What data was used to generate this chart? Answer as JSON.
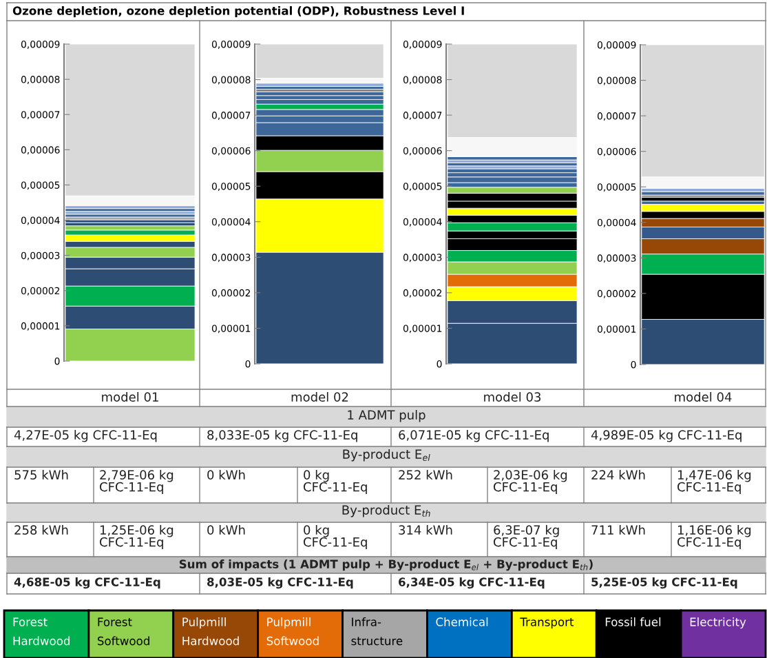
{
  "chart_data": [
    {
      "type": "bar",
      "stacked": true,
      "title": "Ozone depletion, ozone depletion potential (ODP), Robustness Level I",
      "categories": [
        "model 01"
      ],
      "ylim": [
        0,
        9e-05
      ],
      "yticks": [
        0,
        {
          "value": 1e-05,
          "label": "0,00001"
        },
        {
          "value": 2e-05,
          "label": "0,00002"
        },
        {
          "value": 3e-05,
          "label": "0,00003"
        },
        {
          "value": 4e-05,
          "label": "0,00004"
        },
        {
          "value": 5e-05,
          "label": "0,00005"
        },
        {
          "value": 6e-05,
          "label": "0,00006"
        },
        {
          "value": 7e-05,
          "label": "0,00007"
        },
        {
          "value": 8e-05,
          "label": "0,00008"
        },
        {
          "value": 9e-05,
          "label": "0,00009"
        }
      ],
      "grid": false,
      "legend": false,
      "series": [
        {
          "color": "#92d050",
          "values": [
            9.1e-06
          ]
        },
        {
          "color": "#2e4d74",
          "values": [
            6.5e-06
          ]
        },
        {
          "color": "#00b050",
          "values": [
            5.7e-06
          ]
        },
        {
          "color": "#2e4d74",
          "values": [
            4.9e-06
          ]
        },
        {
          "color": "#2e4d74",
          "values": [
            3.3e-06
          ]
        },
        {
          "color": "#92d050",
          "values": [
            2.8e-06
          ]
        },
        {
          "color": "#2e4d74",
          "values": [
            1.7e-06
          ]
        },
        {
          "color": "#ffff00",
          "values": [
            1.8e-06
          ]
        },
        {
          "color": "#00b050",
          "values": [
            1.4e-06
          ]
        },
        {
          "color": "#92d050",
          "values": [
            1.2e-06
          ]
        },
        {
          "color": "#2e4d74",
          "values": [
            9e-07
          ]
        },
        {
          "color": "#2e4d74",
          "values": [
            8e-07
          ]
        },
        {
          "color": "#a6a6a6",
          "values": [
            8e-07
          ]
        },
        {
          "color": "#3d6699",
          "values": [
            8e-07
          ]
        },
        {
          "color": "#8eaadb",
          "values": [
            8e-07
          ]
        },
        {
          "color": "#3d6699",
          "values": [
            8e-07
          ]
        },
        {
          "color": "#8eaadb",
          "values": [
            8e-07
          ]
        },
        {
          "color": "#f7f7f7",
          "values": [
            2.8e-06
          ]
        },
        {
          "color": "#d9d9d9",
          "values": [
            4.31e-05
          ]
        }
      ]
    },
    {
      "type": "bar",
      "stacked": true,
      "categories": [
        "model 02"
      ],
      "ylim": [
        0,
        9e-05
      ],
      "yticks": [
        0,
        {
          "value": 1e-05,
          "label": "0,00001"
        },
        {
          "value": 2e-05,
          "label": "0,00002"
        },
        {
          "value": 3e-05,
          "label": "0,00003"
        },
        {
          "value": 4e-05,
          "label": "0,00004"
        },
        {
          "value": 5e-05,
          "label": "0,00005"
        },
        {
          "value": 6e-05,
          "label": "0,00006"
        },
        {
          "value": 7e-05,
          "label": "0,00007"
        },
        {
          "value": 8e-05,
          "label": "0,00008"
        },
        {
          "value": 9e-05,
          "label": "0,00009"
        }
      ],
      "grid": false,
      "legend": false,
      "series": [
        {
          "color": "#2e4d74",
          "values": [
            3.14e-05
          ]
        },
        {
          "color": "#ffff00",
          "values": [
            1.5e-05
          ]
        },
        {
          "color": "#000000",
          "values": [
            7.7e-06
          ]
        },
        {
          "color": "#92d050",
          "values": [
            6e-06
          ]
        },
        {
          "color": "#000000",
          "values": [
            4.1e-06
          ]
        },
        {
          "color": "#3d6699",
          "values": [
            3.7e-06
          ]
        },
        {
          "color": "#3d6699",
          "values": [
            1.9e-06
          ]
        },
        {
          "color": "#3d6699",
          "values": [
            1.8e-06
          ]
        },
        {
          "color": "#00b050",
          "values": [
            1.5e-06
          ]
        },
        {
          "color": "#3d6699",
          "values": [
            1.3e-06
          ]
        },
        {
          "color": "#3d6699",
          "values": [
            1.1e-06
          ]
        },
        {
          "color": "#3d6699",
          "values": [
            1.1e-06
          ]
        },
        {
          "color": "#808080",
          "values": [
            7e-07
          ]
        },
        {
          "color": "#3d6699",
          "values": [
            8e-07
          ]
        },
        {
          "color": "#8eaadb",
          "values": [
            9e-07
          ]
        },
        {
          "color": "#f7f7f7",
          "values": [
            1.4e-06
          ]
        },
        {
          "color": "#d9d9d9",
          "values": [
            9.6e-06
          ]
        }
      ]
    },
    {
      "type": "bar",
      "stacked": true,
      "categories": [
        "model 03"
      ],
      "ylim": [
        0,
        9e-05
      ],
      "yticks": [
        0,
        {
          "value": 1e-05,
          "label": "0,00001"
        },
        {
          "value": 2e-05,
          "label": "0,00002"
        },
        {
          "value": 3e-05,
          "label": "0,00003"
        },
        {
          "value": 4e-05,
          "label": "0,00004"
        },
        {
          "value": 5e-05,
          "label": "0,00005"
        },
        {
          "value": 6e-05,
          "label": "0,00006"
        },
        {
          "value": 7e-05,
          "label": "0,00007"
        },
        {
          "value": 8e-05,
          "label": "0,00008"
        },
        {
          "value": 9e-05,
          "label": "0,00009"
        }
      ],
      "grid": false,
      "legend": false,
      "series": [
        {
          "color": "#2e4d74",
          "values": [
            1.14e-05
          ]
        },
        {
          "color": "#2e4d74",
          "values": [
            6.4e-06
          ]
        },
        {
          "color": "#ffff00",
          "values": [
            3.9e-06
          ]
        },
        {
          "color": "#e36c09",
          "values": [
            3.5e-06
          ]
        },
        {
          "color": "#92d050",
          "values": [
            3.5e-06
          ]
        },
        {
          "color": "#00b050",
          "values": [
            3.2e-06
          ]
        },
        {
          "color": "#000000",
          "values": [
            3.3e-06
          ]
        },
        {
          "color": "#000000",
          "values": [
            2.2e-06
          ]
        },
        {
          "color": "#00b050",
          "values": [
            2.3e-06
          ]
        },
        {
          "color": "#000000",
          "values": [
            2.1e-06
          ]
        },
        {
          "color": "#ffff00",
          "values": [
            2e-06
          ]
        },
        {
          "color": "#000000",
          "values": [
            2e-06
          ]
        },
        {
          "color": "#000000",
          "values": [
            2.2e-06
          ]
        },
        {
          "color": "#92d050",
          "values": [
            1.7e-06
          ]
        },
        {
          "color": "#3d6699",
          "values": [
            1.3e-06
          ]
        },
        {
          "color": "#3d6699",
          "values": [
            1.6e-06
          ]
        },
        {
          "color": "#3d6699",
          "values": [
            1.2e-06
          ]
        },
        {
          "color": "#3d6699",
          "values": [
            1.1e-06
          ]
        },
        {
          "color": "#8eaadb",
          "values": [
            8e-07
          ]
        },
        {
          "color": "#3d6699",
          "values": [
            9e-07
          ]
        },
        {
          "color": "#8eaadb",
          "values": [
            8e-07
          ]
        },
        {
          "color": "#3d6699",
          "values": [
            9e-07
          ]
        },
        {
          "color": "#f7f7f7",
          "values": [
            5.4e-06
          ]
        },
        {
          "color": "#d9d9d9",
          "values": [
            2.63e-05
          ]
        }
      ]
    },
    {
      "type": "bar",
      "stacked": true,
      "categories": [
        "model 04"
      ],
      "ylim": [
        0,
        9e-05
      ],
      "yticks": [
        0,
        {
          "value": 1e-05,
          "label": "0,00001"
        },
        {
          "value": 2e-05,
          "label": "0,00002"
        },
        {
          "value": 3e-05,
          "label": "0,00003"
        },
        {
          "value": 4e-05,
          "label": "0,00004"
        },
        {
          "value": 5e-05,
          "label": "0,00005"
        },
        {
          "value": 6e-05,
          "label": "0,00006"
        },
        {
          "value": 7e-05,
          "label": "0,00007"
        },
        {
          "value": 8e-05,
          "label": "0,00008"
        },
        {
          "value": 9e-05,
          "label": "0,00009"
        }
      ],
      "grid": false,
      "legend": false,
      "series": [
        {
          "color": "#2e4d74",
          "values": [
            1.27e-05
          ]
        },
        {
          "color": "#000000",
          "values": [
            1.27e-05
          ]
        },
        {
          "color": "#00b050",
          "values": [
            5.7e-06
          ]
        },
        {
          "color": "#974706",
          "values": [
            4.3e-06
          ]
        },
        {
          "color": "#35598a",
          "values": [
            3.3e-06
          ]
        },
        {
          "color": "#974706",
          "values": [
            2.4e-06
          ]
        },
        {
          "color": "#000000",
          "values": [
            2e-06
          ]
        },
        {
          "color": "#ffff00",
          "values": [
            2e-06
          ]
        },
        {
          "color": "#3d6699",
          "values": [
            9e-07
          ]
        },
        {
          "color": "#000000",
          "values": [
            1.1e-06
          ]
        },
        {
          "color": "#808080",
          "values": [
            6e-07
          ]
        },
        {
          "color": "#3d6699",
          "values": [
            9.5e-07
          ]
        },
        {
          "color": "#8eaadb",
          "values": [
            9.5e-07
          ]
        },
        {
          "color": "#f7f7f7",
          "values": [
            3.2e-06
          ]
        },
        {
          "color": "#d9d9d9",
          "values": [
            3.72e-05
          ]
        }
      ]
    },
    {
      "type": "other",
      "annotations": [
        "1 ADMT pulp",
        "4,27E-05 kg CFC-11-Eq",
        "8,033E-05 kg CFC-11-Eq",
        "6,071E-05 kg CFC-11-Eq",
        "4,989E-05 kg CFC-11-Eq",
        "By-product E$_{el}$",
        "575 kWh",
        "2,79E-06 kg CFC-11-Eq",
        "0 kWh",
        "0 kg CFC-11-Eq",
        "252 kWh",
        "2,03E-06 kg CFC-11-Eq",
        "224 kWh",
        "1,47E-06 kg CFC-11-Eq",
        "By-product E$_{th}$",
        "258 kWh",
        "1,25E-06 kg CFC-11-Eq",
        "0 kWh",
        "0 kg CFC-11-Eq",
        "314 kWh",
        "6,3E-07 kg CFC-11-Eq",
        "711 kWh",
        "1,16E-06 kg CFC-11-Eq",
        "Sum of impacts (1 ADMT pulp + By-product E$_{el}$ + By-product E$_{th}$)",
        "4,68E-05 kg CFC-11-Eq",
        "8,03E-05 kg CFC-11-Eq",
        "6,34E-05 kg CFC-11-Eq",
        "5,25E-05 kg CFC-11-Eq"
      ]
    },
    {
      "type": "other",
      "categories": [
        "Forest Hardwood",
        "Forest Softwood",
        "Pulpmill Hardwood",
        "Pulpmill Softwood",
        "Infra-structure",
        "Chemical",
        "Transport",
        "Fossil fuel",
        "Electricity"
      ],
      "colors": [
        "#00b050",
        "#92d050",
        "#974706",
        "#e36c09",
        "#a6a6a6",
        "#0070c0",
        "#ffff00",
        "#000000",
        "#7030a0"
      ]
    }
  ]
}
